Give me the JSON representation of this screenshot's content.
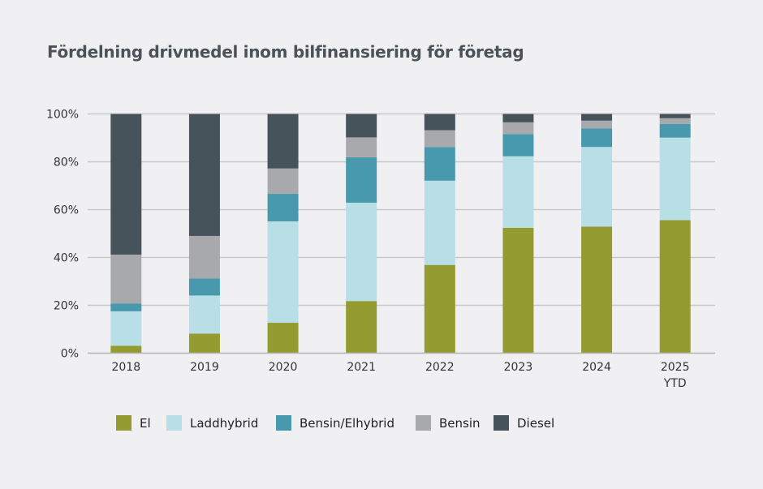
{
  "chart_data": {
    "type": "bar",
    "stacked": true,
    "title": "Fördelning drivmedel inom bilfinansiering för företag",
    "categories": [
      "2018",
      "2019",
      "2020",
      "2021",
      "2022",
      "2023",
      "2024",
      "2025\nYTD"
    ],
    "category_labels": [
      [
        "2018"
      ],
      [
        "2019"
      ],
      [
        "2020"
      ],
      [
        "2021"
      ],
      [
        "2022"
      ],
      [
        "2023"
      ],
      [
        "2024"
      ],
      [
        "2025",
        "YTD"
      ]
    ],
    "ylim": [
      0,
      100
    ],
    "yticks": [
      0,
      20,
      40,
      60,
      80,
      100
    ],
    "ytick_labels": [
      "0%",
      "20%",
      "40%",
      "60%",
      "80%",
      "100%"
    ],
    "grid": true,
    "legend_position": "bottom",
    "series": [
      {
        "name": "El",
        "color": "#939b31",
        "values": [
          3.1,
          8.2,
          12.7,
          21.8,
          36.9,
          52.4,
          52.9,
          55.6
        ]
      },
      {
        "name": "Laddhybrid",
        "color": "#b8dfe5",
        "values": [
          14.4,
          15.9,
          42.4,
          41.1,
          35.2,
          29.9,
          33.3,
          34.5
        ]
      },
      {
        "name": "Bensin/Elhybrid",
        "color": "#4899ad",
        "values": [
          3.3,
          7.1,
          11.5,
          19.0,
          14.1,
          9.3,
          7.8,
          5.7
        ]
      },
      {
        "name": "Bensin",
        "color": "#a8a9ad",
        "values": [
          20.4,
          17.8,
          10.6,
          8.3,
          7.0,
          4.9,
          3.2,
          2.4
        ]
      },
      {
        "name": "Diesel",
        "color": "#47535a",
        "values": [
          58.8,
          51.0,
          22.8,
          9.8,
          6.8,
          3.5,
          2.8,
          1.8
        ]
      }
    ]
  }
}
